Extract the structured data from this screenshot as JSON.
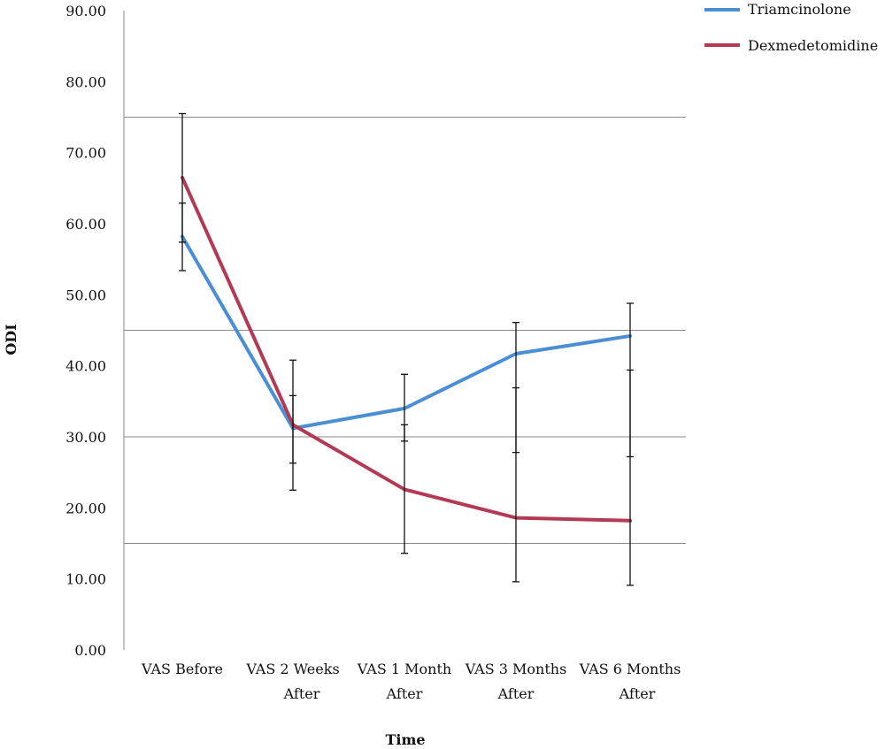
{
  "chart_data": {
    "type": "line",
    "title": "",
    "xlabel": "Time",
    "ylabel": "ODI",
    "ylim": [
      0,
      90
    ],
    "y_ticks": [
      "0.00",
      "10.00",
      "20.00",
      "30.00",
      "40.00",
      "50.00",
      "60.00",
      "70.00",
      "80.00",
      "90.00"
    ],
    "gridlines_y": [
      15,
      30,
      45,
      75
    ],
    "categories": [
      [
        "VAS Before"
      ],
      [
        "VAS 2 Weeks",
        "After"
      ],
      [
        "VAS 1 Month",
        "After"
      ],
      [
        "VAS 3 Months",
        "After"
      ],
      [
        "VAS 6 Months",
        "After"
      ]
    ],
    "legend_position": "top-right",
    "series": [
      {
        "name": "Triamcinolone",
        "color": "#4a8fd3",
        "values": [
          58.2,
          31.2,
          34.0,
          41.7,
          44.2
        ],
        "error_low": [
          53.4,
          26.3,
          29.4,
          27.8,
          27.2
        ],
        "error_high": [
          62.9,
          35.8,
          38.8,
          46.1,
          48.8
        ]
      },
      {
        "name": "Dexmedetomidine",
        "color": "#b23a55",
        "values": [
          66.5,
          31.7,
          22.6,
          18.6,
          18.2
        ],
        "error_low": [
          57.4,
          22.5,
          13.6,
          9.6,
          9.1
        ],
        "error_high": [
          75.5,
          40.8,
          31.7,
          36.9,
          39.4
        ]
      }
    ]
  }
}
